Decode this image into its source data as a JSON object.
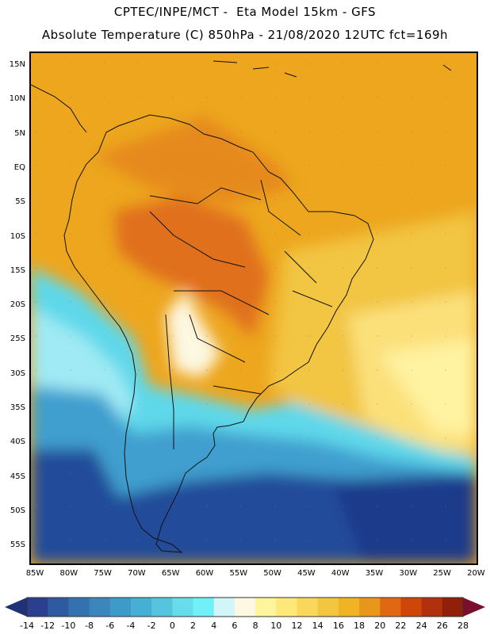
{
  "header": {
    "line1": "CPTEC/INPE/MCT -  Eta Model 15km - GFS",
    "line2": "Absolute Temperature (C) 850hPa - 21/08/2020 12UTC fct=169h"
  },
  "map": {
    "lat_labels": [
      "15N",
      "10N",
      "5N",
      "EQ",
      "5S",
      "10S",
      "15S",
      "20S",
      "25S",
      "30S",
      "35S",
      "40S",
      "45S",
      "50S",
      "55S"
    ],
    "lon_labels": [
      "85W",
      "80W",
      "75W",
      "70W",
      "65W",
      "60W",
      "55W",
      "50W",
      "45W",
      "40W",
      "35W",
      "30W",
      "25W",
      "20W"
    ],
    "field_colors": {
      "hot": "#e0701a",
      "warm": "#eda61e",
      "mild": "#f2c542",
      "cool": "#fff08a",
      "cold": "#5fd8ea",
      "colder": "#3f9fcf",
      "coldest": "#234c99"
    }
  },
  "colorbar": {
    "labels": [
      "-14",
      "-12",
      "-10",
      "-8",
      "-6",
      "-4",
      "-2",
      "0",
      "2",
      "4",
      "6",
      "8",
      "10",
      "12",
      "14",
      "16",
      "18",
      "20",
      "22",
      "24",
      "26",
      "28"
    ],
    "colors": [
      "#2a3f8f",
      "#2d5aa0",
      "#3471b0",
      "#3a86bd",
      "#3d9bc9",
      "#46b0d4",
      "#57c4df",
      "#67dcea",
      "#70f0f7",
      "#d2f5fa",
      "#fdf8e2",
      "#fff59a",
      "#fde879",
      "#f8d75b",
      "#f3c63f",
      "#f0b323",
      "#e9971b",
      "#df6810",
      "#ce4608",
      "#b2300a",
      "#902009"
    ],
    "left_arrow_color": "#1f3275",
    "right_arrow_color": "#7a0f2d"
  }
}
